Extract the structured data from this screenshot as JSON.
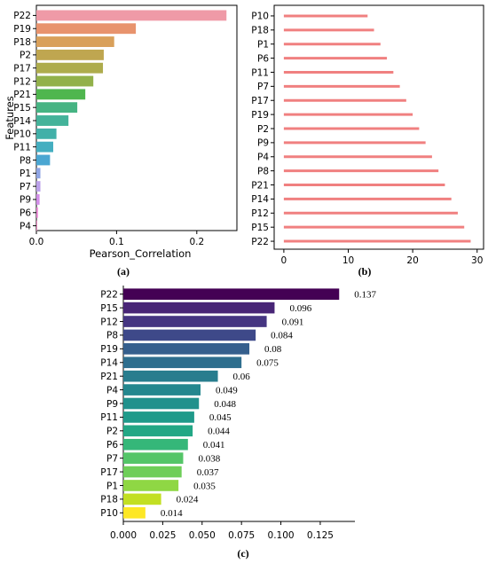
{
  "chart_data": [
    {
      "panel": "(a)",
      "type": "bar",
      "orientation": "horizontal",
      "categories": [
        "P22",
        "P19",
        "P18",
        "P2",
        "P17",
        "P12",
        "P21",
        "P15",
        "P14",
        "P10",
        "P11",
        "P8",
        "P1",
        "P7",
        "P9",
        "P6",
        "P4"
      ],
      "values": [
        0.237,
        0.124,
        0.097,
        0.084,
        0.083,
        0.071,
        0.061,
        0.051,
        0.04,
        0.025,
        0.021,
        0.017,
        0.005,
        0.005,
        0.004,
        0.002,
        0.0005
      ],
      "colors": [
        "#ef9aa7",
        "#e8936d",
        "#d9a05a",
        "#bfa650",
        "#aeac4c",
        "#92b14a",
        "#4fb64e",
        "#46b483",
        "#44b39a",
        "#42b0a8",
        "#44aec0",
        "#4aa6d2",
        "#8fa5e4",
        "#bba0ea",
        "#d28ee9",
        "#ec86d6",
        "#f08ac3"
      ],
      "xlabel": "Pearson_Correlation",
      "ylabel": "Features",
      "xlim": [
        0,
        0.25
      ],
      "xticks": [
        0.0,
        0.1,
        0.2
      ],
      "xtick_labels": [
        "0.0",
        "0.1",
        "0.2"
      ]
    },
    {
      "panel": "(b)",
      "type": "bar",
      "orientation": "horizontal",
      "categories": [
        "P10",
        "P18",
        "P1",
        "P6",
        "P11",
        "P7",
        "P17",
        "P19",
        "P2",
        "P9",
        "P4",
        "P8",
        "P21",
        "P14",
        "P12",
        "P15",
        "P22"
      ],
      "values": [
        13,
        14,
        15,
        16,
        17,
        18,
        19,
        20,
        21,
        22,
        23,
        24,
        25,
        26,
        27,
        28,
        29
      ],
      "color": "#f08080",
      "xlim": [
        -1.5,
        31
      ],
      "xticks": [
        0,
        10,
        20,
        30
      ],
      "xtick_labels": [
        "0",
        "10",
        "20",
        "30"
      ]
    },
    {
      "panel": "(c)",
      "type": "bar",
      "orientation": "horizontal",
      "categories": [
        "P22",
        "P15",
        "P12",
        "P8",
        "P19",
        "P14",
        "P21",
        "P4",
        "P9",
        "P11",
        "P2",
        "P6",
        "P7",
        "P17",
        "P1",
        "P18",
        "P10"
      ],
      "values": [
        0.137,
        0.096,
        0.091,
        0.084,
        0.08,
        0.075,
        0.06,
        0.049,
        0.048,
        0.045,
        0.044,
        0.041,
        0.038,
        0.037,
        0.035,
        0.024,
        0.014
      ],
      "value_labels": [
        "0.137",
        "0.096",
        "0.091",
        "0.084",
        "0.08",
        "0.075",
        "0.06",
        "0.049",
        "0.048",
        "0.045",
        "0.044",
        "0.041",
        "0.038",
        "0.037",
        "0.035",
        "0.024",
        "0.014"
      ],
      "colors": [
        "#440154",
        "#482576",
        "#453581",
        "#3e4989",
        "#355f8d",
        "#2e6e8e",
        "#287d8e",
        "#24878e",
        "#21918c",
        "#1f9a8a",
        "#22a785",
        "#35b779",
        "#54c568",
        "#6ece58",
        "#8fd744",
        "#c2df23",
        "#fde725"
      ],
      "xlim": [
        0,
        0.147
      ],
      "xticks": [
        0.0,
        0.025,
        0.05,
        0.075,
        0.1,
        0.125
      ],
      "xtick_labels": [
        "0.000",
        "0.025",
        "0.050",
        "0.075",
        "0.100",
        "0.125"
      ]
    }
  ]
}
